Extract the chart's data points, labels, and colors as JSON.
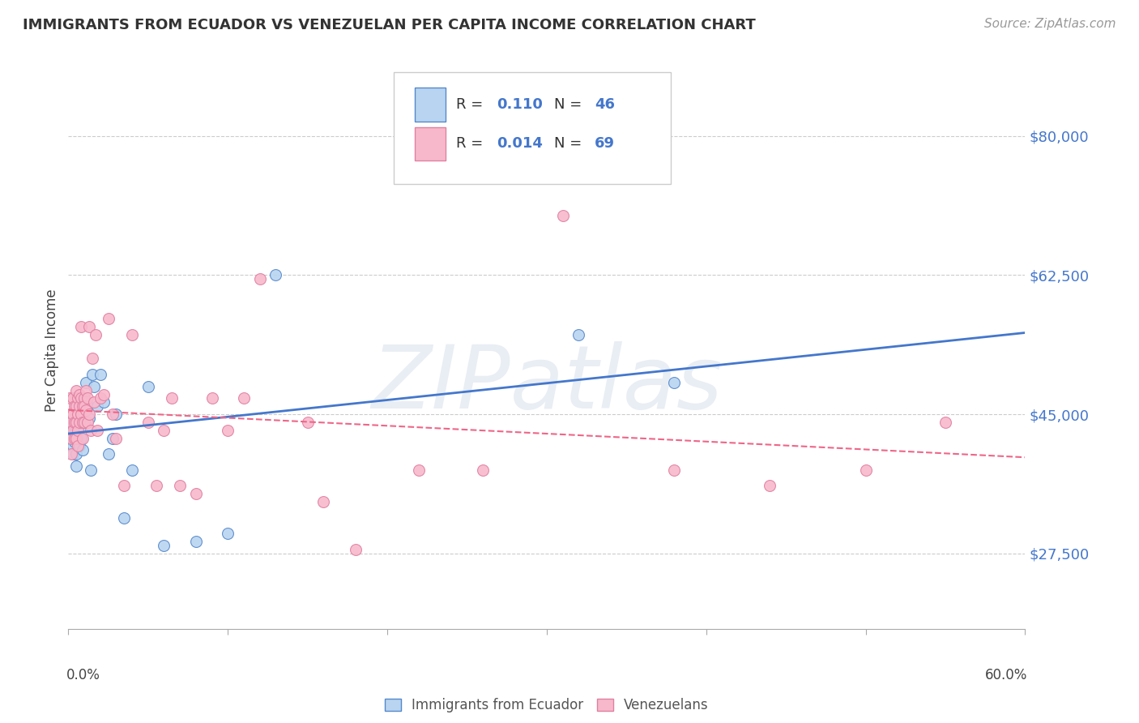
{
  "title": "IMMIGRANTS FROM ECUADOR VS VENEZUELAN PER CAPITA INCOME CORRELATION CHART",
  "source": "Source: ZipAtlas.com",
  "ylabel": "Per Capita Income",
  "yticks": [
    27500,
    45000,
    62500,
    80000
  ],
  "ytick_labels": [
    "$27,500",
    "$45,000",
    "$62,500",
    "$80,000"
  ],
  "xlim": [
    0.0,
    0.6
  ],
  "ylim": [
    18000,
    88000
  ],
  "blue_R": "0.110",
  "blue_N": "46",
  "pink_R": "0.014",
  "pink_N": "69",
  "blue_fill": "#B8D4F0",
  "pink_fill": "#F8B8CC",
  "blue_edge": "#5588CC",
  "pink_edge": "#E080A0",
  "blue_line": "#4477CC",
  "pink_line": "#EE6688",
  "label_color": "#4477CC",
  "bg": "#FFFFFF",
  "grid_color": "#CCCCCC",
  "watermark": "ZIPatlas",
  "blue_x": [
    0.001,
    0.002,
    0.002,
    0.003,
    0.003,
    0.003,
    0.004,
    0.004,
    0.004,
    0.005,
    0.005,
    0.005,
    0.005,
    0.006,
    0.006,
    0.006,
    0.007,
    0.007,
    0.008,
    0.008,
    0.008,
    0.009,
    0.009,
    0.01,
    0.01,
    0.011,
    0.012,
    0.013,
    0.014,
    0.015,
    0.016,
    0.018,
    0.02,
    0.022,
    0.025,
    0.028,
    0.03,
    0.035,
    0.04,
    0.05,
    0.06,
    0.08,
    0.1,
    0.13,
    0.32,
    0.38
  ],
  "blue_y": [
    44000,
    43000,
    42000,
    45000,
    41000,
    40000,
    44500,
    43000,
    41500,
    43000,
    42000,
    40000,
    38500,
    46000,
    44000,
    42000,
    44000,
    41000,
    47000,
    45000,
    42000,
    43500,
    40500,
    46500,
    44000,
    49000,
    46000,
    44500,
    38000,
    50000,
    48500,
    46000,
    50000,
    46500,
    40000,
    42000,
    45000,
    32000,
    38000,
    48500,
    28500,
    29000,
    30000,
    62500,
    55000,
    49000
  ],
  "pink_x": [
    0.001,
    0.001,
    0.002,
    0.002,
    0.002,
    0.003,
    0.003,
    0.003,
    0.004,
    0.004,
    0.004,
    0.005,
    0.005,
    0.005,
    0.005,
    0.006,
    0.006,
    0.006,
    0.006,
    0.007,
    0.007,
    0.007,
    0.008,
    0.008,
    0.008,
    0.009,
    0.009,
    0.009,
    0.01,
    0.01,
    0.01,
    0.011,
    0.011,
    0.012,
    0.012,
    0.013,
    0.013,
    0.014,
    0.015,
    0.016,
    0.017,
    0.018,
    0.02,
    0.022,
    0.025,
    0.028,
    0.03,
    0.035,
    0.04,
    0.05,
    0.055,
    0.06,
    0.065,
    0.07,
    0.08,
    0.09,
    0.1,
    0.11,
    0.12,
    0.15,
    0.16,
    0.18,
    0.22,
    0.26,
    0.31,
    0.38,
    0.44,
    0.5,
    0.55
  ],
  "pink_y": [
    47000,
    45000,
    44000,
    42000,
    40000,
    47000,
    45000,
    43000,
    46000,
    44000,
    42000,
    48000,
    46000,
    44000,
    42000,
    47000,
    45000,
    43000,
    41000,
    47500,
    46000,
    44000,
    56000,
    47000,
    45000,
    46000,
    44000,
    42000,
    47000,
    46000,
    44000,
    48000,
    45500,
    47000,
    44000,
    56000,
    45000,
    43000,
    52000,
    46500,
    55000,
    43000,
    47000,
    47500,
    57000,
    45000,
    42000,
    36000,
    55000,
    44000,
    36000,
    43000,
    47000,
    36000,
    35000,
    47000,
    43000,
    47000,
    62000,
    44000,
    34000,
    28000,
    38000,
    38000,
    70000,
    38000,
    36000,
    38000,
    44000
  ]
}
